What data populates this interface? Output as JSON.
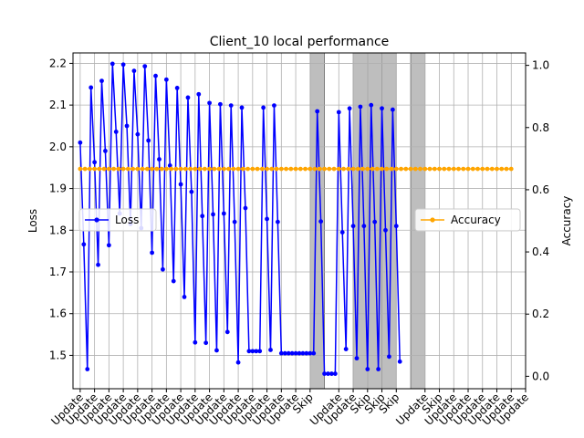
{
  "chart_data": {
    "type": "line",
    "title": "Client_10 local performance",
    "ylabel_left": "Loss",
    "ylabel_right": "Accuracy",
    "ylim_left": [
      1.42,
      2.225
    ],
    "ylim_right": [
      -0.04,
      1.04
    ],
    "y_ticks_left": [
      "1.5",
      "1.6",
      "1.7",
      "1.8",
      "1.9",
      "2.0",
      "2.1",
      "2.2"
    ],
    "y_ticks_right": [
      "0.0",
      "0.2",
      "0.4",
      "0.6",
      "0.8",
      "1.0"
    ],
    "x_ticks": [
      {
        "round": 0,
        "label": "Update"
      },
      {
        "round": 1,
        "label": "Update"
      },
      {
        "round": 2,
        "label": "Update"
      },
      {
        "round": 3,
        "label": "Update"
      },
      {
        "round": 4,
        "label": "Update"
      },
      {
        "round": 5,
        "label": "Update"
      },
      {
        "round": 6,
        "label": "Update"
      },
      {
        "round": 7,
        "label": "Update"
      },
      {
        "round": 8,
        "label": "Update"
      },
      {
        "round": 9,
        "label": "Update"
      },
      {
        "round": 10,
        "label": "Update"
      },
      {
        "round": 11,
        "label": "Update"
      },
      {
        "round": 12,
        "label": "Update"
      },
      {
        "round": 13,
        "label": "Update"
      },
      {
        "round": 14,
        "label": "Update"
      },
      {
        "round": 15,
        "label": "Update"
      },
      {
        "round": 16,
        "label": "Skip"
      },
      {
        "round": 18,
        "label": "Update"
      },
      {
        "round": 19,
        "label": "Update"
      },
      {
        "round": 20,
        "label": "Skip"
      },
      {
        "round": 21,
        "label": "Skip"
      },
      {
        "round": 22,
        "label": "Skip"
      },
      {
        "round": 24,
        "label": "Update"
      },
      {
        "round": 25,
        "label": "Skip"
      },
      {
        "round": 26,
        "label": "Update"
      },
      {
        "round": 27,
        "label": "Update"
      },
      {
        "round": 28,
        "label": "Update"
      },
      {
        "round": 29,
        "label": "Update"
      },
      {
        "round": 30,
        "label": "Update"
      },
      {
        "round": 31,
        "label": "Update"
      }
    ],
    "skip_regions": [
      [
        16,
        17
      ],
      [
        19,
        20
      ],
      [
        20,
        21
      ],
      [
        21,
        22
      ],
      [
        23,
        24
      ]
    ],
    "x_range": [
      -0.5,
      31.0
    ],
    "grid": true,
    "series": [
      {
        "name": "Loss",
        "axis": "left",
        "color": "#0000ff",
        "points": [
          [
            0.0,
            2.01
          ],
          [
            0.25,
            1.766
          ],
          [
            0.5,
            1.467
          ],
          [
            0.75,
            2.142
          ],
          [
            1.0,
            1.963
          ],
          [
            1.25,
            1.717
          ],
          [
            1.5,
            2.158
          ],
          [
            1.75,
            1.99
          ],
          [
            2.0,
            1.764
          ],
          [
            2.25,
            2.199
          ],
          [
            2.5,
            2.036
          ],
          [
            2.75,
            1.84
          ],
          [
            3.0,
            2.197
          ],
          [
            3.25,
            2.05
          ],
          [
            3.5,
            1.815
          ],
          [
            3.75,
            2.182
          ],
          [
            4.0,
            2.03
          ],
          [
            4.25,
            1.805
          ],
          [
            4.5,
            2.193
          ],
          [
            4.75,
            2.015
          ],
          [
            5.0,
            1.746
          ],
          [
            5.25,
            2.17
          ],
          [
            5.5,
            1.97
          ],
          [
            5.75,
            1.706
          ],
          [
            6.0,
            2.161
          ],
          [
            6.25,
            1.955
          ],
          [
            6.5,
            1.678
          ],
          [
            6.75,
            2.141
          ],
          [
            7.0,
            1.91
          ],
          [
            7.25,
            1.64
          ],
          [
            7.5,
            2.118
          ],
          [
            7.75,
            1.892
          ],
          [
            8.0,
            1.531
          ],
          [
            8.25,
            2.126
          ],
          [
            8.5,
            1.834
          ],
          [
            8.75,
            1.53
          ],
          [
            9.0,
            2.105
          ],
          [
            9.25,
            1.838
          ],
          [
            9.5,
            1.512
          ],
          [
            9.75,
            2.102
          ],
          [
            10.0,
            1.84
          ],
          [
            10.25,
            1.556
          ],
          [
            10.5,
            2.099
          ],
          [
            10.75,
            1.82
          ],
          [
            11.0,
            1.483
          ],
          [
            11.25,
            2.094
          ],
          [
            11.5,
            1.853
          ],
          [
            11.75,
            1.51
          ],
          [
            12.0,
            1.51
          ],
          [
            12.25,
            1.51
          ],
          [
            12.5,
            1.51
          ],
          [
            12.75,
            2.094
          ],
          [
            13.0,
            1.827
          ],
          [
            13.25,
            1.513
          ],
          [
            13.5,
            2.099
          ],
          [
            13.75,
            1.82
          ],
          [
            14.0,
            1.505
          ],
          [
            14.25,
            1.505
          ],
          [
            14.5,
            1.505
          ],
          [
            14.75,
            1.505
          ],
          [
            15.0,
            1.505
          ],
          [
            15.25,
            1.505
          ],
          [
            15.5,
            1.505
          ],
          [
            15.75,
            1.505
          ],
          [
            16.0,
            1.505
          ],
          [
            16.25,
            1.505
          ],
          [
            16.5,
            2.085
          ],
          [
            16.75,
            1.821
          ],
          [
            17.0,
            1.456
          ],
          [
            17.25,
            1.456
          ],
          [
            17.5,
            1.456
          ],
          [
            17.75,
            1.456
          ],
          [
            18.0,
            2.083
          ],
          [
            18.25,
            1.795
          ],
          [
            18.5,
            1.515
          ],
          [
            18.75,
            2.092
          ],
          [
            19.0,
            1.81
          ],
          [
            19.25,
            1.493
          ],
          [
            19.5,
            2.096
          ],
          [
            19.75,
            1.81
          ],
          [
            20.0,
            1.467
          ],
          [
            20.25,
            2.1
          ],
          [
            20.5,
            1.82
          ],
          [
            20.75,
            1.467
          ],
          [
            21.0,
            2.092
          ],
          [
            21.25,
            1.8
          ],
          [
            21.5,
            1.497
          ],
          [
            21.75,
            2.089
          ],
          [
            22.0,
            1.81
          ],
          [
            22.25,
            1.485
          ]
        ]
      },
      {
        "name": "Accuracy",
        "axis": "right",
        "color": "#ffa500",
        "x_start": 0.0,
        "x_end": 30.0,
        "count": 91,
        "value": 0.667
      }
    ],
    "legend": [
      {
        "name": "Loss",
        "placement": "center-left"
      },
      {
        "name": "Accuracy",
        "placement": "center-right"
      }
    ]
  }
}
